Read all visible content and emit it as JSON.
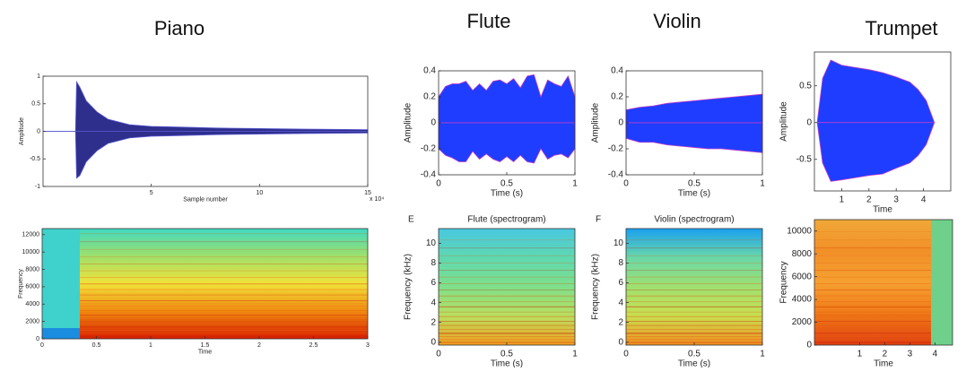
{
  "chart_data": [
    {
      "type": "waveform",
      "title": "Piano",
      "xlabel": "Sample number",
      "ylabel": "Amplitude",
      "x_multiplier": "x 10⁴",
      "xlim": [
        0,
        15
      ],
      "ylim": [
        -1,
        1
      ],
      "xticks": [
        5,
        10,
        15
      ],
      "yticks": [
        -1,
        -0.5,
        0,
        0.5,
        1
      ],
      "color": "#2e2e8c",
      "edge_color": "#5a5ad0",
      "x": [
        0,
        1.5,
        1.55,
        1.7,
        2,
        2.5,
        3,
        4,
        5,
        6,
        8,
        10,
        12,
        15
      ],
      "upper": [
        0,
        0,
        0.9,
        0.8,
        0.55,
        0.35,
        0.22,
        0.12,
        0.09,
        0.08,
        0.06,
        0.05,
        0.04,
        0.03
      ],
      "lower": [
        0,
        0,
        -0.85,
        -0.8,
        -0.55,
        -0.35,
        -0.22,
        -0.12,
        -0.09,
        -0.08,
        -0.06,
        -0.05,
        -0.04,
        -0.03
      ]
    },
    {
      "type": "spectrogram",
      "xlabel": "Time",
      "ylabel": "Frequency",
      "xlim": [
        0,
        3
      ],
      "ylim": [
        0,
        12700
      ],
      "xticks": [
        0,
        0.5,
        1,
        1.5,
        2,
        2.5,
        3
      ],
      "yticks": [
        0,
        2000,
        4000,
        6000,
        8000,
        10000,
        12000
      ],
      "colors": [
        "#d81e00",
        "#f08a10",
        "#f2e23a",
        "#9fe06a",
        "#3fd9c2"
      ]
    },
    {
      "type": "waveform",
      "title": "Flute",
      "xlabel": "Time (s)",
      "ylabel": "Amplitude",
      "xlim": [
        0,
        1
      ],
      "ylim": [
        -0.4,
        0.4
      ],
      "xticks": [
        0,
        0.5,
        1
      ],
      "yticks": [
        -0.4,
        -0.2,
        0,
        0.2,
        0.4
      ],
      "color": "#1f3dff",
      "edge_color": "#c040c8",
      "x": [
        0,
        0.05,
        0.1,
        0.15,
        0.2,
        0.25,
        0.3,
        0.35,
        0.4,
        0.45,
        0.5,
        0.55,
        0.6,
        0.65,
        0.7,
        0.75,
        0.8,
        0.85,
        0.9,
        0.95,
        1
      ],
      "upper": [
        0.2,
        0.28,
        0.3,
        0.3,
        0.32,
        0.25,
        0.3,
        0.25,
        0.32,
        0.33,
        0.3,
        0.34,
        0.27,
        0.36,
        0.37,
        0.2,
        0.33,
        0.3,
        0.28,
        0.36,
        0.2
      ],
      "lower": [
        -0.2,
        -0.25,
        -0.27,
        -0.3,
        -0.3,
        -0.22,
        -0.28,
        -0.24,
        -0.28,
        -0.3,
        -0.26,
        -0.3,
        -0.25,
        -0.3,
        -0.31,
        -0.2,
        -0.28,
        -0.25,
        -0.24,
        -0.27,
        -0.2
      ]
    },
    {
      "type": "waveform",
      "title": "Violin",
      "xlabel": "Time (s)",
      "ylabel": "Amplitude",
      "xlim": [
        0,
        1
      ],
      "ylim": [
        -0.4,
        0.4
      ],
      "xticks": [
        0,
        0.5,
        1
      ],
      "yticks": [
        -0.4,
        -0.2,
        0,
        0.2,
        0.4
      ],
      "color": "#1f3dff",
      "edge_color": "#c040c8",
      "x": [
        0,
        0.1,
        0.2,
        0.3,
        0.4,
        0.5,
        0.6,
        0.7,
        0.8,
        0.9,
        1
      ],
      "upper": [
        0.1,
        0.12,
        0.13,
        0.15,
        0.16,
        0.17,
        0.18,
        0.19,
        0.2,
        0.21,
        0.22
      ],
      "lower": [
        -0.12,
        -0.15,
        -0.15,
        -0.17,
        -0.18,
        -0.19,
        -0.2,
        -0.2,
        -0.21,
        -0.22,
        -0.23
      ]
    },
    {
      "type": "waveform",
      "title": "Trumpet",
      "xlabel": "Time",
      "ylabel": "Amplitude",
      "xlim": [
        0,
        5
      ],
      "ylim": [
        -0.93,
        0.96
      ],
      "xticks": [
        1,
        2,
        3,
        4
      ],
      "yticks": [
        -0.5,
        0,
        0.5
      ],
      "color": "#1f3dff",
      "edge_color": "#c040c8",
      "x": [
        0.1,
        0.3,
        0.6,
        1,
        1.5,
        2,
        2.5,
        3,
        3.5,
        3.8,
        4.1,
        4.3,
        4.4
      ],
      "upper": [
        0,
        0.6,
        0.85,
        0.78,
        0.75,
        0.72,
        0.68,
        0.62,
        0.55,
        0.45,
        0.3,
        0.1,
        0
      ],
      "lower": [
        0,
        -0.55,
        -0.8,
        -0.78,
        -0.75,
        -0.72,
        -0.7,
        -0.62,
        -0.55,
        -0.45,
        -0.3,
        -0.1,
        0
      ]
    },
    {
      "type": "spectrogram",
      "title": "Flute (spectrogram)",
      "panel_label": "E",
      "xlabel": "Time (s)",
      "ylabel": "Frequency (kHz)",
      "xlim": [
        0,
        1
      ],
      "ylim": [
        -0.3,
        11.5
      ],
      "xticks": [
        0,
        0.5,
        1
      ],
      "yticks": [
        0,
        2,
        4,
        6,
        8,
        10
      ],
      "colors": [
        "#f0a020",
        "#b8e060",
        "#7ee08a",
        "#5fd8b0",
        "#48c8e0"
      ]
    },
    {
      "type": "spectrogram",
      "title": "Violin (spectrogram)",
      "panel_label": "F",
      "xlabel": "Time (s)",
      "ylabel": "Frequency (kHz)",
      "xlim": [
        0,
        1
      ],
      "ylim": [
        -0.3,
        11.5
      ],
      "xticks": [
        0,
        0.5,
        1
      ],
      "yticks": [
        0,
        2,
        4,
        6,
        8,
        10
      ],
      "colors": [
        "#f09020",
        "#c8e050",
        "#9fe070",
        "#6ad8a8",
        "#1aa0f0"
      ]
    },
    {
      "type": "spectrogram",
      "xlabel": "Time",
      "ylabel": "Frequency",
      "xlim": [
        -0.8,
        4.7
      ],
      "ylim": [
        0,
        11000
      ],
      "xticks": [
        1,
        2,
        3,
        4
      ],
      "yticks": [
        0,
        2000,
        4000,
        6000,
        8000,
        10000
      ],
      "colors": [
        "#e04010",
        "#f07a18",
        "#f5a030",
        "#f29028",
        "#f0a838"
      ]
    }
  ]
}
